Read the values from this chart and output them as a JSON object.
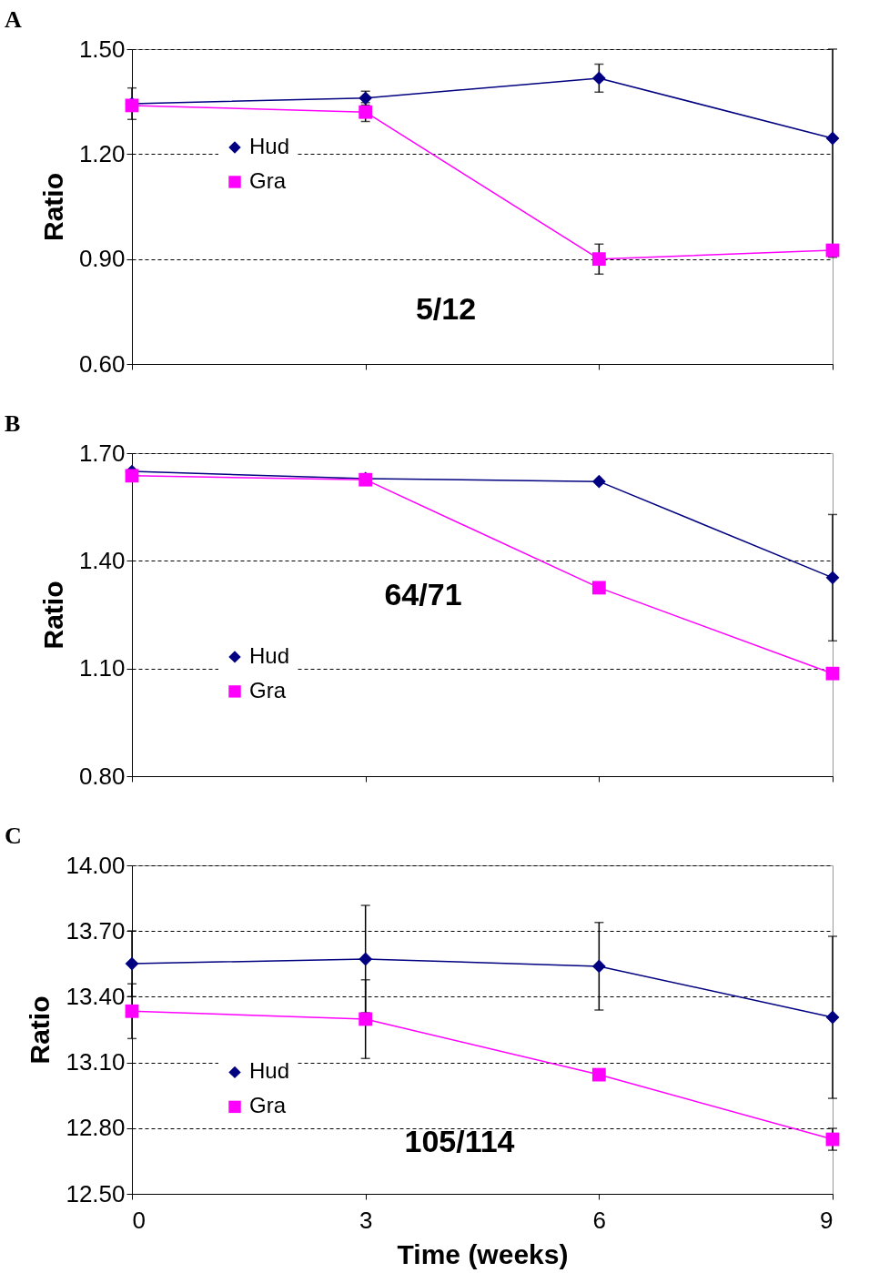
{
  "chart_data": [
    {
      "type": "line",
      "title": "A",
      "ylabel": "Ratio",
      "x": [
        0,
        3,
        6,
        9
      ],
      "xlim": [
        0,
        9
      ],
      "xticks": [
        0,
        3,
        6,
        9
      ],
      "ylim": [
        0.6,
        1.5
      ],
      "yticks": [
        {
          "value": 0.6,
          "label": "0.60"
        },
        {
          "value": 0.9,
          "label": "0.90"
        },
        {
          "value": 1.2,
          "label": "1.20"
        },
        {
          "value": 1.5,
          "label": "1.50"
        }
      ],
      "grid": "y",
      "legend": "left",
      "tick_labels": "y",
      "annotations": [
        "5/12"
      ],
      "series": [
        {
          "name": "Hud",
          "color": "#000080",
          "marker": "diamond",
          "values": [
            1.344,
            1.36,
            1.417,
            1.245
          ],
          "errors": [
            0.045,
            0.02,
            0.04,
            [
              0.905,
              1.5
            ]
          ]
        },
        {
          "name": "Gra",
          "color": "#ff00ff",
          "marker": "square",
          "values": [
            1.339,
            1.32,
            0.9,
            0.925
          ],
          "errors": [
            null,
            0.027,
            0.043,
            null
          ]
        }
      ]
    },
    {
      "type": "line",
      "title": "B",
      "ylabel": "Ratio",
      "x": [
        0,
        3,
        6,
        9
      ],
      "xlim": [
        0,
        9
      ],
      "xticks": [
        0,
        3,
        6,
        9
      ],
      "ylim": [
        0.8,
        1.7
      ],
      "yticks": [
        {
          "value": 0.8,
          "label": "0.80"
        },
        {
          "value": 1.1,
          "label": "1.10"
        },
        {
          "value": 1.4,
          "label": "1.40"
        },
        {
          "value": 1.7,
          "label": "1.70"
        }
      ],
      "grid": "y",
      "legend": "bottom left",
      "tick_labels": "y",
      "annotations": [
        "64/71"
      ],
      "series": [
        {
          "name": "Hud",
          "color": "#000080",
          "marker": "diamond",
          "values": [
            1.649,
            1.629,
            1.621,
            1.353
          ],
          "errors": [
            null,
            null,
            null,
            0.176
          ]
        },
        {
          "name": "Gra",
          "color": "#ff00ff",
          "marker": "square",
          "values": [
            1.637,
            1.626,
            1.325,
            1.086
          ]
        }
      ]
    },
    {
      "type": "line",
      "title": "C",
      "ylabel": "Ratio",
      "xlabel": "Time (weeks)",
      "x": [
        0,
        3,
        6,
        9
      ],
      "xlim": [
        0,
        9
      ],
      "xticks": [
        0,
        3,
        6,
        9
      ],
      "ylim": [
        12.5,
        14.0
      ],
      "yticks": [
        {
          "value": 12.5,
          "label": "12.50"
        },
        {
          "value": 12.8,
          "label": "12.80"
        },
        {
          "value": 13.1,
          "label": "13.10"
        },
        {
          "value": 13.4,
          "label": "13.40"
        },
        {
          "value": 13.7,
          "label": "13.70"
        },
        {
          "value": 14.0,
          "label": "14.00"
        }
      ],
      "grid": "y",
      "legend": "bottom left",
      "annotations": [
        "105/114"
      ],
      "series": [
        {
          "name": "Hud",
          "color": "#000080",
          "marker": "diamond",
          "values": [
            13.551,
            13.572,
            13.539,
            13.306
          ],
          "errors": [
            0.15,
            0.245,
            0.2,
            0.37
          ]
        },
        {
          "name": "Gra",
          "color": "#ff00ff",
          "marker": "square",
          "values": [
            13.334,
            13.298,
            13.044,
            12.749
          ],
          "errors": [
            0.125,
            0.18,
            null,
            0.05
          ]
        }
      ]
    }
  ]
}
